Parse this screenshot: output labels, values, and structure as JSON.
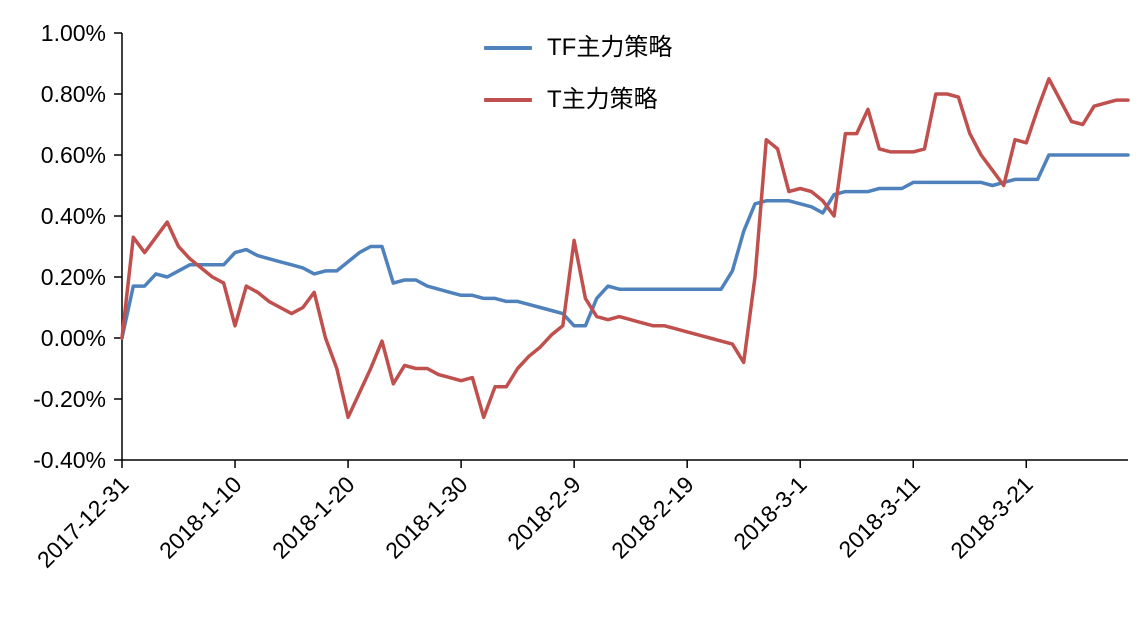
{
  "chart_data": {
    "type": "line",
    "title": "",
    "xlabel": "",
    "ylabel": "",
    "grid": false,
    "legend_position": "top-center",
    "axis_color": "#000000",
    "ylim": [
      -0.4,
      1.0
    ],
    "y_ticks": [
      {
        "value": 1.0,
        "label": "1.00%"
      },
      {
        "value": 0.8,
        "label": "0.80%"
      },
      {
        "value": 0.6,
        "label": "0.60%"
      },
      {
        "value": 0.4,
        "label": "0.40%"
      },
      {
        "value": 0.2,
        "label": "0.20%"
      },
      {
        "value": 0.0,
        "label": "0.00%"
      },
      {
        "value": -0.2,
        "label": "-0.20%"
      },
      {
        "value": -0.4,
        "label": "-0.40%"
      }
    ],
    "x_range_days": [
      0,
      89
    ],
    "x_ticks": [
      {
        "day": 0,
        "label": "2017-12-31"
      },
      {
        "day": 10,
        "label": "2018-1-10"
      },
      {
        "day": 20,
        "label": "2018-1-20"
      },
      {
        "day": 30,
        "label": "2018-1-30"
      },
      {
        "day": 40,
        "label": "2018-2-9"
      },
      {
        "day": 50,
        "label": "2018-2-19"
      },
      {
        "day": 60,
        "label": "2018-3-1"
      },
      {
        "day": 70,
        "label": "2018-3-11"
      },
      {
        "day": 80,
        "label": "2018-3-21"
      }
    ],
    "series": [
      {
        "name": "TF主力策略",
        "color": "#4F81BD",
        "values": [
          0.0,
          0.17,
          0.17,
          0.21,
          0.2,
          0.22,
          0.24,
          0.24,
          0.24,
          0.24,
          0.28,
          0.29,
          0.27,
          0.26,
          0.25,
          0.24,
          0.23,
          0.21,
          0.22,
          0.22,
          0.25,
          0.28,
          0.3,
          0.3,
          0.18,
          0.19,
          0.19,
          0.17,
          0.16,
          0.15,
          0.14,
          0.14,
          0.13,
          0.13,
          0.12,
          0.12,
          0.11,
          0.1,
          0.09,
          0.08,
          0.04,
          0.04,
          0.13,
          0.17,
          0.16,
          0.16,
          0.16,
          0.16,
          0.16,
          0.16,
          0.16,
          0.16,
          0.16,
          0.16,
          0.22,
          0.35,
          0.44,
          0.45,
          0.45,
          0.45,
          0.44,
          0.43,
          0.41,
          0.47,
          0.48,
          0.48,
          0.48,
          0.49,
          0.49,
          0.49,
          0.51,
          0.51,
          0.51,
          0.51,
          0.51,
          0.51,
          0.51,
          0.5,
          0.51,
          0.52,
          0.52,
          0.52,
          0.6,
          0.6,
          0.6,
          0.6,
          0.6,
          0.6,
          0.6,
          0.6
        ]
      },
      {
        "name": "T主力策略",
        "color": "#C0504D",
        "values": [
          0.0,
          0.33,
          0.28,
          0.33,
          0.38,
          0.3,
          0.26,
          0.23,
          0.2,
          0.18,
          0.04,
          0.17,
          0.15,
          0.12,
          0.1,
          0.08,
          0.1,
          0.15,
          0.0,
          -0.1,
          -0.26,
          -0.18,
          -0.1,
          -0.01,
          -0.15,
          -0.09,
          -0.1,
          -0.1,
          -0.12,
          -0.13,
          -0.14,
          -0.13,
          -0.26,
          -0.16,
          -0.16,
          -0.1,
          -0.06,
          -0.03,
          0.01,
          0.04,
          0.32,
          0.13,
          0.07,
          0.06,
          0.07,
          0.06,
          0.05,
          0.04,
          0.04,
          0.03,
          0.02,
          0.01,
          0.0,
          -0.01,
          -0.02,
          -0.08,
          0.2,
          0.65,
          0.62,
          0.48,
          0.49,
          0.48,
          0.45,
          0.4,
          0.67,
          0.67,
          0.75,
          0.62,
          0.61,
          0.61,
          0.61,
          0.62,
          0.8,
          0.8,
          0.79,
          0.67,
          0.6,
          0.55,
          0.5,
          0.65,
          0.64,
          0.75,
          0.85,
          0.78,
          0.71,
          0.7,
          0.76,
          0.77,
          0.78,
          0.78
        ]
      }
    ]
  },
  "legend": {
    "items": [
      {
        "label": "TF主力策略",
        "color": "#4F81BD"
      },
      {
        "label": "T主力策略",
        "color": "#C0504D"
      }
    ]
  }
}
